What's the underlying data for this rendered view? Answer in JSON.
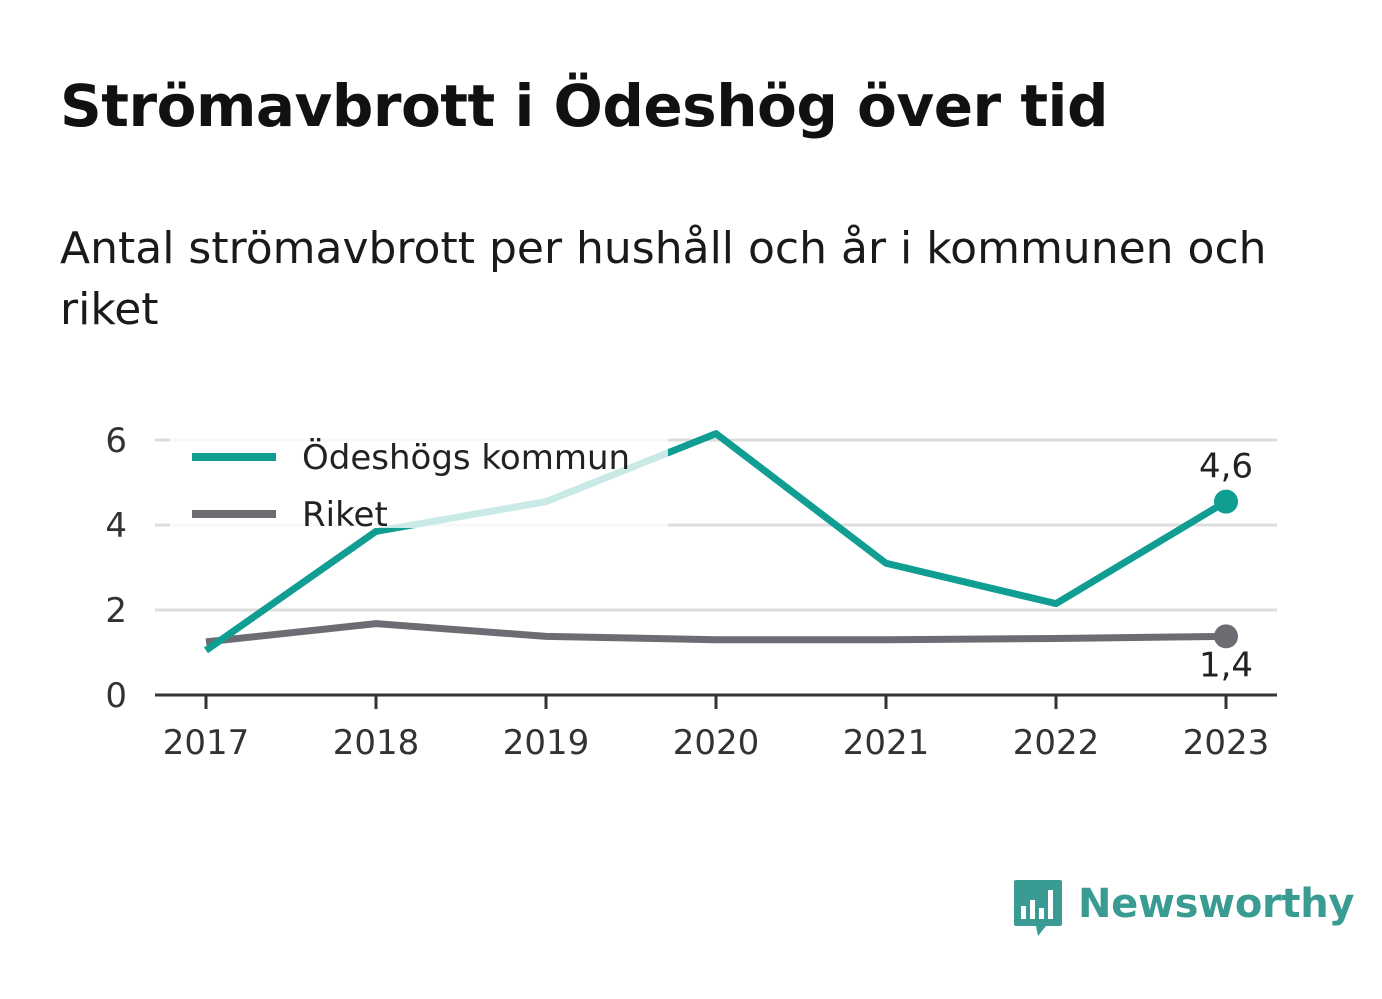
{
  "header": {
    "title": "Strömavbrott i Ödeshög över tid",
    "subtitle": "Antal strömavbrott per hushåll och år i kommunen och riket"
  },
  "brand": {
    "name": "Newsworthy",
    "icon": "bar-chart-speech-bubble-icon"
  },
  "colors": {
    "kommun": "#109e92",
    "riket": "#6e6c73",
    "grid": "#dddddd",
    "axis": "#333333",
    "brand": "#3a9b93"
  },
  "chart_data": {
    "type": "line",
    "x": [
      "2017",
      "2018",
      "2019",
      "2020",
      "2021",
      "2022",
      "2023"
    ],
    "series": [
      {
        "name": "Ödeshögs kommun",
        "values": [
          1.05,
          3.85,
          4.55,
          6.15,
          3.1,
          2.15,
          4.55
        ],
        "end_label": "4,6"
      },
      {
        "name": "Riket",
        "values": [
          1.25,
          1.68,
          1.38,
          1.3,
          1.3,
          1.33,
          1.38
        ],
        "end_label": "1,4"
      }
    ],
    "yticks": [
      "0",
      "2",
      "4",
      "6"
    ],
    "ylim": [
      0,
      6
    ],
    "grid": true,
    "legend": "top-left"
  }
}
